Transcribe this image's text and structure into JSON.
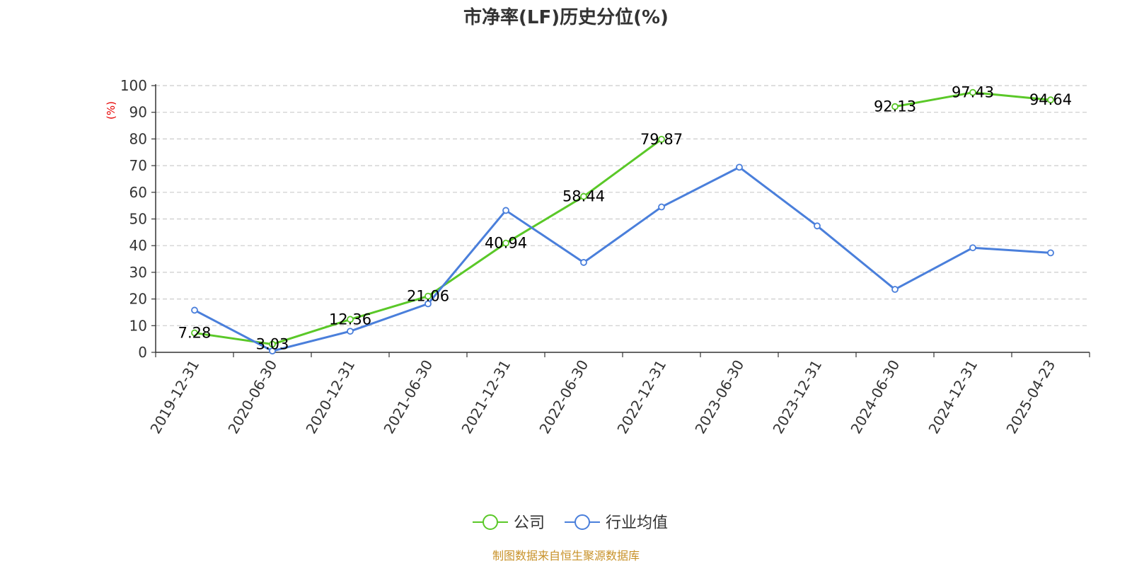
{
  "chart_data": {
    "type": "line",
    "title": "市净率(LF)历史分位(%)",
    "yunit": "(%)",
    "ylim": [
      0,
      100
    ],
    "yticks": [
      0,
      10,
      20,
      30,
      40,
      50,
      60,
      70,
      80,
      90,
      100
    ],
    "grid": true,
    "legend_position": "bottom",
    "categories": [
      "2019-12-31",
      "2020-06-30",
      "2020-12-31",
      "2021-06-30",
      "2021-12-31",
      "2022-06-30",
      "2022-12-31",
      "2023-06-30",
      "2023-12-31",
      "2024-06-30",
      "2024-12-31",
      "2025-04-23"
    ],
    "series": [
      {
        "name": "公司",
        "color": "#5ac828",
        "values": [
          7.28,
          3.03,
          12.36,
          21.06,
          40.94,
          58.44,
          79.87,
          null,
          null,
          92.13,
          97.43,
          94.64
        ],
        "labels": [
          "7.28",
          "3.03",
          "12.36",
          "21.06",
          "40.94",
          "58.44",
          "79.87",
          "",
          "",
          "92.13",
          "97.43",
          "94.64"
        ]
      },
      {
        "name": "行业均值",
        "color": "#4a7fdb",
        "values": [
          15.8,
          0.5,
          7.9,
          18.2,
          53.2,
          33.7,
          54.5,
          69.4,
          47.4,
          23.6,
          39.2,
          37.3
        ]
      }
    ]
  },
  "source_note": "制图数据来自恒生聚源数据库"
}
